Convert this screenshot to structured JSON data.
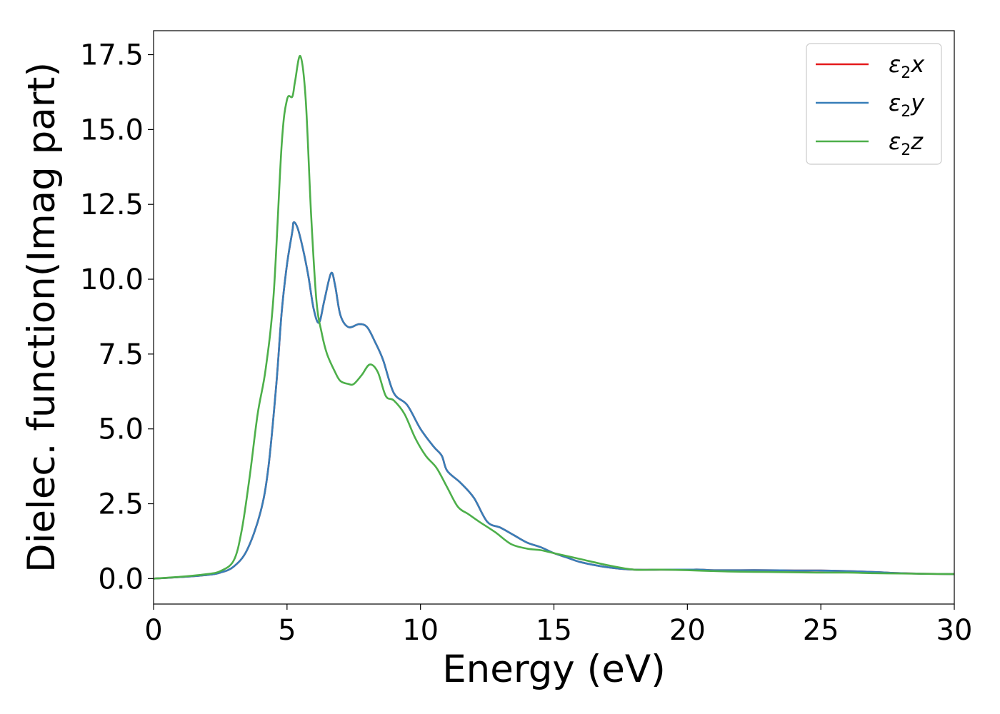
{
  "chart_data": {
    "type": "line",
    "title": "",
    "xlabel": "Energy (eV)",
    "ylabel": "Dielec. function(Imag part)",
    "xlim": [
      0,
      30
    ],
    "ylim": [
      -0.85,
      18.3
    ],
    "xticks": [
      0,
      5,
      10,
      15,
      20,
      25,
      30
    ],
    "xtick_labels": [
      "0",
      "5",
      "10",
      "15",
      "20",
      "25",
      "30"
    ],
    "yticks": [
      0,
      2.5,
      5,
      7.5,
      10,
      12.5,
      15,
      17.5
    ],
    "ytick_labels": [
      "0.0",
      "2.5",
      "5.0",
      "7.5",
      "10.0",
      "12.5",
      "15.0",
      "17.5"
    ],
    "grid": false,
    "legend": {
      "placement": "top-right",
      "entries": [
        {
          "base": "ε",
          "sub": "2",
          "axis": "x"
        },
        {
          "base": "ε",
          "sub": "2",
          "axis": "y"
        },
        {
          "base": "ε",
          "sub": "2",
          "axis": "z"
        }
      ]
    },
    "series": [
      {
        "name": "ε2x",
        "color": "#e41a1c",
        "x": [
          0,
          1,
          2,
          2.5,
          3,
          3.5,
          4,
          4.3,
          4.6,
          4.8,
          5.0,
          5.2,
          5.25,
          5.4,
          5.6,
          5.8,
          6.0,
          6.2,
          6.4,
          6.65,
          6.8,
          7.0,
          7.3,
          7.7,
          8.0,
          8.3,
          8.6,
          9.0,
          9.5,
          10.0,
          10.5,
          10.8,
          11.0,
          11.5,
          12.0,
          12.5,
          13.0,
          13.5,
          14.0,
          14.5,
          15.0,
          15.5,
          16.0,
          17.0,
          18.0,
          19.0,
          20.0,
          20.5,
          21.0,
          22.0,
          23.0,
          24.0,
          25.0,
          26.0,
          27.0,
          28.0,
          29.0,
          30.0
        ],
        "y": [
          0,
          0.05,
          0.12,
          0.2,
          0.4,
          0.95,
          2.2,
          3.7,
          6.5,
          8.9,
          10.5,
          11.6,
          11.9,
          11.7,
          11.0,
          10.1,
          9.0,
          8.55,
          9.3,
          10.2,
          9.8,
          8.8,
          8.4,
          8.5,
          8.4,
          7.9,
          7.3,
          6.2,
          5.8,
          5.0,
          4.4,
          4.1,
          3.6,
          3.2,
          2.7,
          1.9,
          1.7,
          1.45,
          1.2,
          1.05,
          0.85,
          0.7,
          0.55,
          0.38,
          0.3,
          0.3,
          0.3,
          0.3,
          0.28,
          0.28,
          0.28,
          0.27,
          0.27,
          0.25,
          0.22,
          0.18,
          0.16,
          0.15
        ]
      },
      {
        "name": "ε2y",
        "color": "#377eb8",
        "x": [
          0,
          1,
          2,
          2.5,
          3,
          3.5,
          4,
          4.3,
          4.6,
          4.8,
          5.0,
          5.2,
          5.25,
          5.4,
          5.6,
          5.8,
          6.0,
          6.2,
          6.4,
          6.65,
          6.8,
          7.0,
          7.3,
          7.7,
          8.0,
          8.3,
          8.6,
          9.0,
          9.5,
          10.0,
          10.5,
          10.8,
          11.0,
          11.5,
          12.0,
          12.5,
          13.0,
          13.5,
          14.0,
          14.5,
          15.0,
          15.5,
          16.0,
          17.0,
          18.0,
          19.0,
          20.0,
          20.5,
          21.0,
          22.0,
          23.0,
          24.0,
          25.0,
          26.0,
          27.0,
          28.0,
          29.0,
          30.0
        ],
        "y": [
          0,
          0.05,
          0.12,
          0.2,
          0.4,
          0.95,
          2.2,
          3.7,
          6.5,
          8.9,
          10.5,
          11.6,
          11.9,
          11.7,
          11.0,
          10.1,
          9.0,
          8.55,
          9.3,
          10.2,
          9.8,
          8.8,
          8.4,
          8.5,
          8.4,
          7.9,
          7.3,
          6.2,
          5.8,
          5.0,
          4.4,
          4.1,
          3.6,
          3.2,
          2.7,
          1.9,
          1.7,
          1.45,
          1.2,
          1.05,
          0.85,
          0.7,
          0.55,
          0.38,
          0.3,
          0.3,
          0.3,
          0.3,
          0.28,
          0.28,
          0.28,
          0.27,
          0.27,
          0.25,
          0.22,
          0.18,
          0.16,
          0.15
        ]
      },
      {
        "name": "ε2z",
        "color": "#4daf4a",
        "x": [
          0,
          1,
          2,
          2.5,
          3,
          3.3,
          3.6,
          3.9,
          4.2,
          4.5,
          4.8,
          5.0,
          5.2,
          5.3,
          5.5,
          5.7,
          5.9,
          6.1,
          6.3,
          6.5,
          6.8,
          7.0,
          7.3,
          7.5,
          7.8,
          8.1,
          8.4,
          8.7,
          9.0,
          9.4,
          9.8,
          10.2,
          10.6,
          11.0,
          11.4,
          11.8,
          12.2,
          12.8,
          13.4,
          14.0,
          14.5,
          15.0,
          16.0,
          17.0,
          18.0,
          19.0,
          20.0,
          21.0,
          22.0,
          23.0,
          24.0,
          25.0,
          26.0,
          27.0,
          28.0,
          29.0,
          30.0
        ],
        "y": [
          0,
          0.06,
          0.15,
          0.25,
          0.6,
          1.6,
          3.4,
          5.5,
          7.0,
          9.5,
          14.5,
          16.0,
          16.1,
          16.6,
          17.45,
          16.0,
          12.2,
          9.3,
          8.2,
          7.5,
          6.9,
          6.6,
          6.5,
          6.5,
          6.8,
          7.15,
          6.9,
          6.1,
          5.95,
          5.5,
          4.7,
          4.1,
          3.7,
          3.05,
          2.4,
          2.15,
          1.9,
          1.55,
          1.15,
          1.0,
          0.95,
          0.85,
          0.65,
          0.45,
          0.3,
          0.3,
          0.28,
          0.25,
          0.23,
          0.22,
          0.21,
          0.2,
          0.2,
          0.18,
          0.17,
          0.16,
          0.15
        ]
      }
    ]
  }
}
